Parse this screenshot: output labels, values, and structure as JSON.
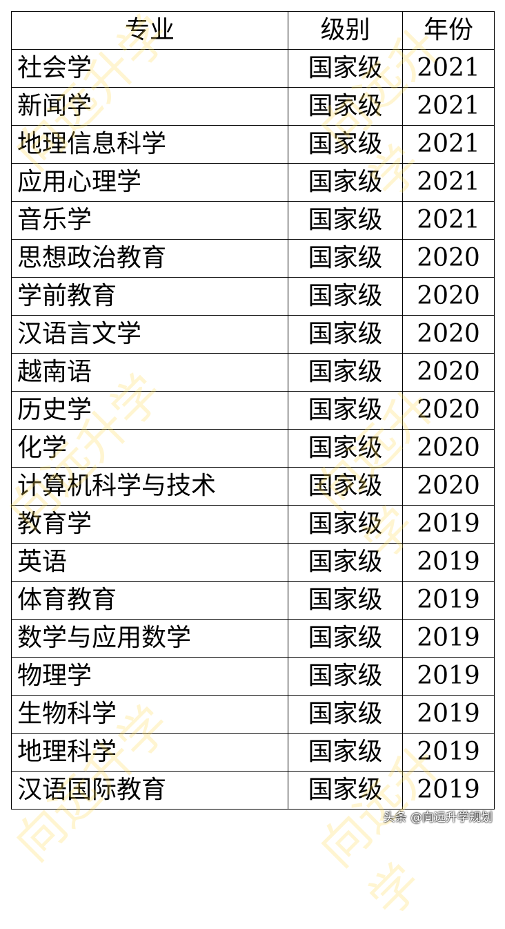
{
  "headers": [
    "专业",
    "级别",
    "年份"
  ],
  "rows": [
    [
      "社会学",
      "国家级",
      "2021"
    ],
    [
      "新闻学",
      "国家级",
      "2021"
    ],
    [
      "地理信息科学",
      "国家级",
      "2021"
    ],
    [
      "应用心理学",
      "国家级",
      "2021"
    ],
    [
      "音乐学",
      "国家级",
      "2021"
    ],
    [
      "思想政治教育",
      "国家级",
      "2020"
    ],
    [
      "学前教育",
      "国家级",
      "2020"
    ],
    [
      "汉语言文学",
      "国家级",
      "2020"
    ],
    [
      "越南语",
      "国家级",
      "2020"
    ],
    [
      "历史学",
      "国家级",
      "2020"
    ],
    [
      "化学",
      "国家级",
      "2020"
    ],
    [
      "计算机科学与技术",
      "国家级",
      "2020"
    ],
    [
      "教育学",
      "国家级",
      "2019"
    ],
    [
      "英语",
      "国家级",
      "2019"
    ],
    [
      "体育教育",
      "国家级",
      "2019"
    ],
    [
      "数学与应用数学",
      "国家级",
      "2019"
    ],
    [
      "物理学",
      "国家级",
      "2019"
    ],
    [
      "生物科学",
      "国家级",
      "2019"
    ],
    [
      "地理科学",
      "国家级",
      "2019"
    ],
    [
      "汉语国际教育",
      "国家级",
      "2019"
    ]
  ],
  "watermark": "向远升学",
  "credit": "头条 @向远升学规划"
}
